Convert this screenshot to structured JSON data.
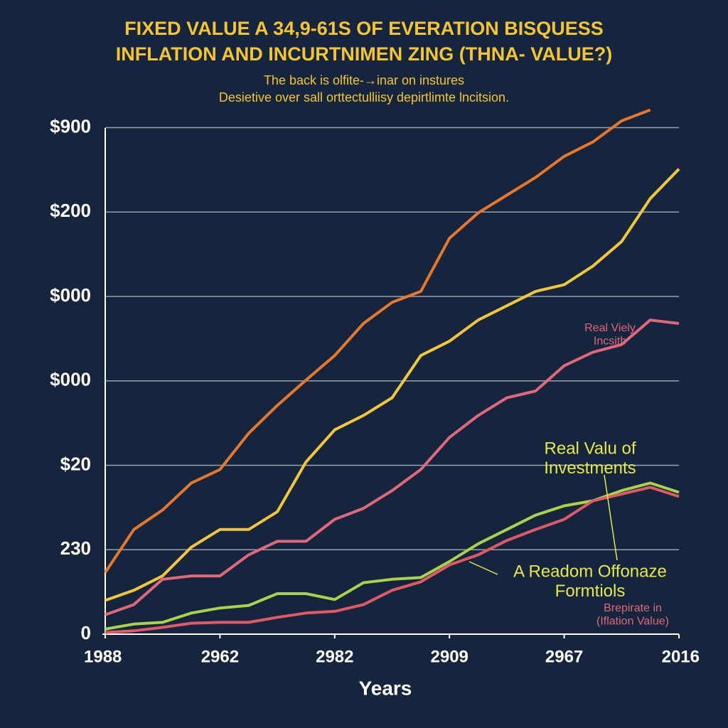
{
  "chart_data": {
    "type": "line",
    "title": [
      "FIXED VALUE A 34,9-61S OF EVERATION BISQUESS",
      "INFLATION AND INCURTNIMEN ZING (THNA- VALUE?)"
    ],
    "subtitle": [
      "The back is olfite-→inar on instures",
      "Desietive over sall orttectulliisy depirtlimte lncitsion."
    ],
    "xlabel": "Years",
    "x": [
      0,
      0.25,
      0.5,
      0.75,
      1,
      1.25,
      1.5,
      1.75,
      2,
      2.25,
      2.5,
      2.75,
      3,
      3.25,
      3.5,
      3.75,
      4,
      4.25,
      4.5,
      4.75,
      5
    ],
    "xlim": [
      0,
      5
    ],
    "xticks": [
      {
        "value": 0,
        "label": "1988"
      },
      {
        "value": 1,
        "label": "2962"
      },
      {
        "value": 2,
        "label": "2982"
      },
      {
        "value": 3,
        "label": "2909"
      },
      {
        "value": 4,
        "label": "2967"
      },
      {
        "value": 5,
        "label": "2016"
      }
    ],
    "ylim": [
      0,
      6.4
    ],
    "yticks": [
      {
        "value": 0,
        "label": "0"
      },
      {
        "value": 1,
        "label": "230"
      },
      {
        "value": 2,
        "label": "$20"
      },
      {
        "value": 3,
        "label": "$000"
      },
      {
        "value": 4,
        "label": "$000"
      },
      {
        "value": 5,
        "label": "$200"
      },
      {
        "value": 6,
        "label": "$900"
      }
    ],
    "grid": true,
    "series": [
      {
        "color": "#e8772a",
        "values": [
          0.73,
          1.24,
          1.47,
          1.79,
          1.95,
          2.38,
          2.71,
          3.01,
          3.3,
          3.68,
          3.93,
          4.06,
          4.69,
          4.99,
          5.2,
          5.41,
          5.66,
          5.83,
          6.08,
          6.21,
          null
        ]
      },
      {
        "color": "#f2c53a",
        "values": [
          0.4,
          0.52,
          0.69,
          1.03,
          1.24,
          1.24,
          1.45,
          2.04,
          2.42,
          2.59,
          2.8,
          3.3,
          3.47,
          3.72,
          3.89,
          4.06,
          4.14,
          4.36,
          4.65,
          5.16,
          5.51
        ]
      },
      {
        "color": "#e0687a",
        "values": [
          0.23,
          0.35,
          0.65,
          0.69,
          0.69,
          0.94,
          1.1,
          1.1,
          1.36,
          1.49,
          1.7,
          1.95,
          2.33,
          2.59,
          2.8,
          2.88,
          3.18,
          3.34,
          3.43,
          3.72,
          3.68
        ]
      },
      {
        "color": "#a8d34a",
        "values": [
          0.06,
          0.12,
          0.14,
          0.25,
          0.31,
          0.34,
          0.48,
          0.48,
          0.41,
          0.61,
          0.65,
          0.67,
          0.86,
          1.07,
          1.24,
          1.41,
          1.52,
          1.58,
          1.7,
          1.79,
          1.68
        ]
      },
      {
        "color": "#e05a66",
        "values": [
          0.02,
          0.04,
          0.08,
          0.13,
          0.14,
          0.14,
          0.2,
          0.25,
          0.27,
          0.35,
          0.52,
          0.62,
          0.82,
          0.94,
          1.11,
          1.24,
          1.36,
          1.58,
          1.66,
          1.74,
          1.63
        ]
      }
    ],
    "annotations": [
      {
        "text": [
          "Real Vielу",
          "Incsitb"
        ],
        "color": "#e0687a"
      },
      {
        "text": [
          "Real Valu of",
          "Investments"
        ],
        "color": "#e8e84a"
      },
      {
        "text": [
          "A Readom Offonaze",
          "Formtiols"
        ],
        "color": "#e8e84a"
      },
      {
        "text": [
          "Brepirate in",
          "(Iflation Value)"
        ],
        "color": "#e0687a"
      }
    ]
  }
}
